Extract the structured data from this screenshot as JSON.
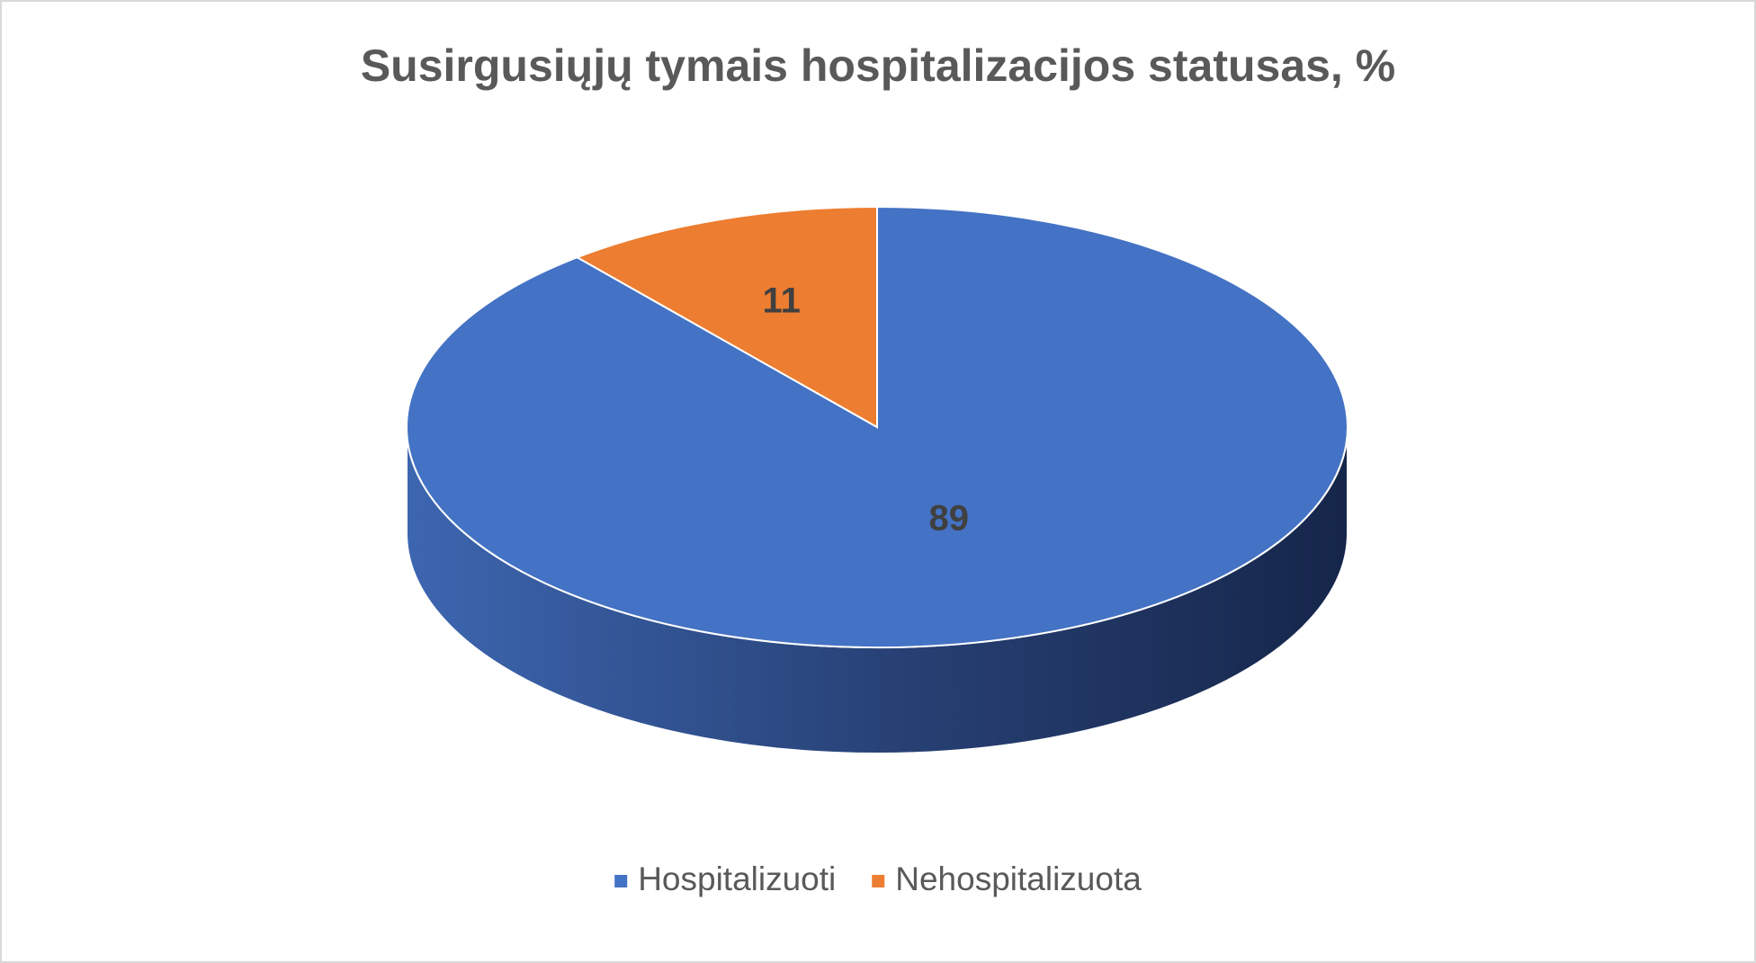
{
  "chart_data": {
    "type": "pie",
    "title": "Susirgusiųjų tymais hospitalizacijos statusas, %",
    "categories": [
      "Hospitalizuoti",
      "Nehospitalizuota"
    ],
    "values": [
      89,
      11
    ],
    "colors": [
      "#4472c4",
      "#ed7d31"
    ],
    "legend": "bottom"
  }
}
